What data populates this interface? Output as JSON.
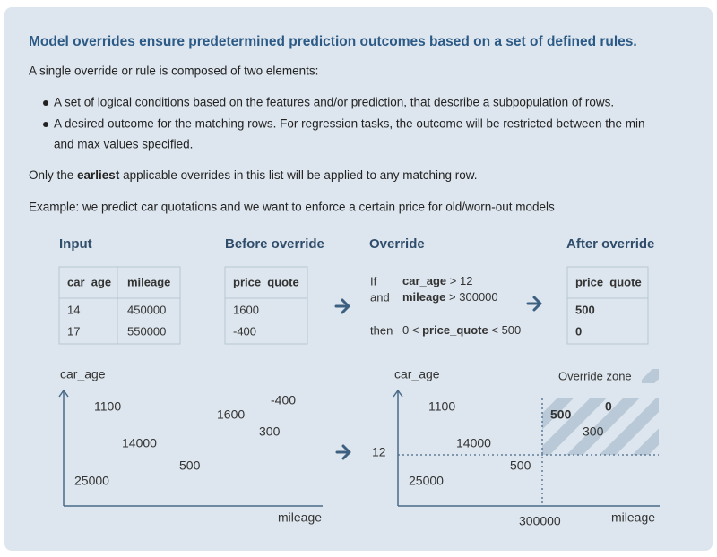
{
  "title": "Model overrides ensure predetermined prediction outcomes based on a set of defined rules.",
  "intro": "A single override or rule is composed of two elements:",
  "bullets": [
    "A set of logical conditions based on the features and/or prediction, that describe a subpopulation of rows.",
    [
      "A desired outcome for the matching rows. For regression tasks, the outcome will be restricted between the min",
      "and max values specified."
    ]
  ],
  "note": {
    "before": "Only the ",
    "bold": "earliest",
    "after": " applicable overrides in this list will be applied to any matching row."
  },
  "example": "Example: we predict car quotations and we want to enforce a certain price for old/worn-out models",
  "input": {
    "title": "Input",
    "columns": [
      "car_age",
      "mileage"
    ],
    "rows": [
      [
        "14",
        "450000"
      ],
      [
        "17",
        "550000"
      ]
    ]
  },
  "before": {
    "title": "Before override",
    "columns": [
      "price_quote"
    ],
    "rows": [
      [
        "1600"
      ],
      [
        "-400"
      ]
    ]
  },
  "override": {
    "title": "Override",
    "if": "If",
    "and": "and",
    "then": "then",
    "cond1": {
      "field": "car_age",
      "op": "> 12"
    },
    "cond2": {
      "field": "mileage",
      "op": "> 300000"
    },
    "outcome": {
      "min": "0 <",
      "field": "price_quote",
      "max": "< 500"
    }
  },
  "after": {
    "title": "After override",
    "columns": [
      "price_quote"
    ],
    "rows": [
      [
        "500"
      ],
      [
        "0"
      ]
    ]
  },
  "plot_before": {
    "y_label": "car_age",
    "x_label": "mileage",
    "points": [
      "1100",
      "1600",
      "-400",
      "300",
      "14000",
      "500",
      "25000"
    ]
  },
  "plot_after": {
    "y_label": "car_age",
    "x_label": "mileage",
    "zone_label": "Override zone",
    "threshold_y": "12",
    "threshold_x": "300000",
    "points": [
      "1100",
      "500",
      "0",
      "300",
      "14000",
      "500",
      "25000"
    ]
  }
}
